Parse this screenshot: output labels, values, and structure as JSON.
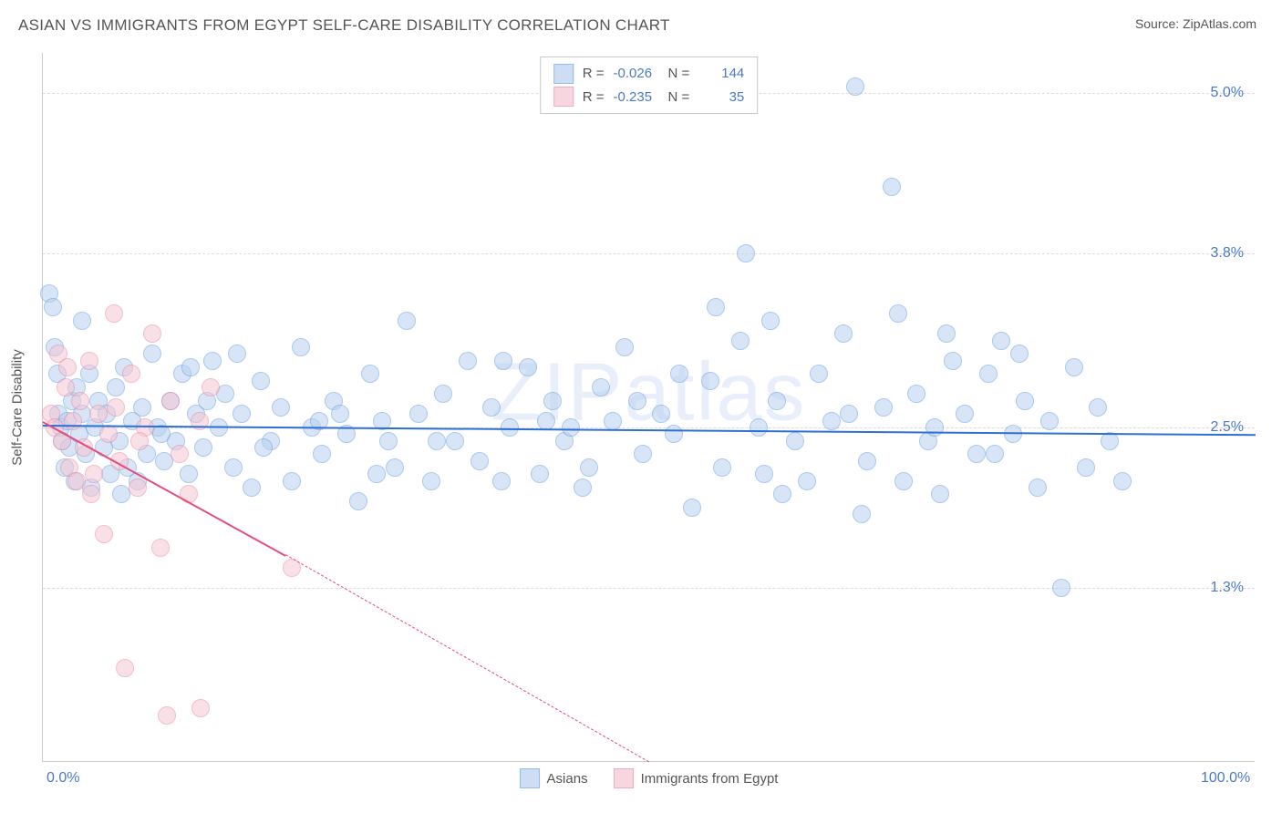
{
  "title": "ASIAN VS IMMIGRANTS FROM EGYPT SELF-CARE DISABILITY CORRELATION CHART",
  "source_label": "Source: ZipAtlas.com",
  "watermark": "ZIPatlas",
  "chart": {
    "type": "scatter",
    "y_axis_title": "Self-Care Disability",
    "x_lim": [
      0,
      100
    ],
    "y_lim": [
      0,
      5.3
    ],
    "x_ticks": [
      {
        "v": 0,
        "label": "0.0%"
      },
      {
        "v": 100,
        "label": "100.0%"
      }
    ],
    "y_ticks": [
      {
        "v": 1.3,
        "label": "1.3%"
      },
      {
        "v": 2.5,
        "label": "2.5%"
      },
      {
        "v": 3.8,
        "label": "3.8%"
      },
      {
        "v": 5.0,
        "label": "5.0%"
      }
    ],
    "grid_color": "#dddddd",
    "background_color": "#ffffff",
    "marker_radius": 10,
    "marker_stroke_width": 1.5,
    "series": [
      {
        "name": "Asians",
        "fill": "#b8d1f0",
        "stroke": "#6a9de0",
        "fill_opacity": 0.55,
        "R": "-0.026",
        "N": "144",
        "trend": {
          "y_at_x0": 2.52,
          "y_at_x100": 2.45,
          "stroke": "#2e6fd6",
          "width": 2.5
        },
        "points": [
          [
            0.5,
            3.5
          ],
          [
            0.8,
            3.4
          ],
          [
            1,
            3.1
          ],
          [
            1.2,
            2.9
          ],
          [
            1.3,
            2.6
          ],
          [
            1.5,
            2.5
          ],
          [
            1.6,
            2.4
          ],
          [
            1.8,
            2.2
          ],
          [
            2,
            2.55
          ],
          [
            2.2,
            2.35
          ],
          [
            2.4,
            2.7
          ],
          [
            2.6,
            2.1
          ],
          [
            2.8,
            2.8
          ],
          [
            3,
            2.45
          ],
          [
            3.2,
            2.6
          ],
          [
            3.5,
            2.3
          ],
          [
            3.8,
            2.9
          ],
          [
            4,
            2.05
          ],
          [
            4.3,
            2.5
          ],
          [
            4.6,
            2.7
          ],
          [
            5,
            2.35
          ],
          [
            5.3,
            2.6
          ],
          [
            5.6,
            2.15
          ],
          [
            6,
            2.8
          ],
          [
            6.3,
            2.4
          ],
          [
            6.7,
            2.95
          ],
          [
            7,
            2.2
          ],
          [
            7.4,
            2.55
          ],
          [
            7.8,
            2.1
          ],
          [
            8.2,
            2.65
          ],
          [
            8.6,
            2.3
          ],
          [
            9,
            3.05
          ],
          [
            9.5,
            2.5
          ],
          [
            10,
            2.25
          ],
          [
            10.5,
            2.7
          ],
          [
            11,
            2.4
          ],
          [
            11.5,
            2.9
          ],
          [
            12,
            2.15
          ],
          [
            12.6,
            2.6
          ],
          [
            13.2,
            2.35
          ],
          [
            14,
            3.0
          ],
          [
            14.5,
            2.5
          ],
          [
            15,
            2.75
          ],
          [
            15.7,
            2.2
          ],
          [
            16.4,
            2.6
          ],
          [
            17.2,
            2.05
          ],
          [
            18,
            2.85
          ],
          [
            18.8,
            2.4
          ],
          [
            19.6,
            2.65
          ],
          [
            20.5,
            2.1
          ],
          [
            21.3,
            3.1
          ],
          [
            22.2,
            2.5
          ],
          [
            23,
            2.3
          ],
          [
            24,
            2.7
          ],
          [
            25,
            2.45
          ],
          [
            26,
            1.95
          ],
          [
            27,
            2.9
          ],
          [
            28,
            2.55
          ],
          [
            29,
            2.2
          ],
          [
            30,
            3.3
          ],
          [
            31,
            2.6
          ],
          [
            32,
            2.1
          ],
          [
            33,
            2.75
          ],
          [
            34,
            2.4
          ],
          [
            35,
            3.0
          ],
          [
            36,
            2.25
          ],
          [
            37,
            2.65
          ],
          [
            38.5,
            2.5
          ],
          [
            40,
            2.95
          ],
          [
            41,
            2.15
          ],
          [
            42,
            2.7
          ],
          [
            43,
            2.4
          ],
          [
            44.5,
            2.05
          ],
          [
            46,
            2.8
          ],
          [
            47,
            2.55
          ],
          [
            48,
            3.1
          ],
          [
            49.5,
            2.3
          ],
          [
            51,
            2.6
          ],
          [
            52,
            2.45
          ],
          [
            53.5,
            1.9
          ],
          [
            55,
            2.85
          ],
          [
            56,
            2.2
          ],
          [
            57.5,
            3.15
          ],
          [
            58,
            3.8
          ],
          [
            59,
            2.5
          ],
          [
            60,
            3.3
          ],
          [
            60.5,
            2.7
          ],
          [
            62,
            2.4
          ],
          [
            63,
            2.1
          ],
          [
            64,
            2.9
          ],
          [
            65,
            2.55
          ],
          [
            66,
            3.2
          ],
          [
            67,
            5.05
          ],
          [
            68,
            2.25
          ],
          [
            69.3,
            2.65
          ],
          [
            70,
            4.3
          ],
          [
            70.5,
            3.35
          ],
          [
            71,
            2.1
          ],
          [
            72,
            2.75
          ],
          [
            73,
            2.4
          ],
          [
            74,
            2.0
          ],
          [
            75,
            3.0
          ],
          [
            76,
            2.6
          ],
          [
            77,
            2.3
          ],
          [
            78,
            2.9
          ],
          [
            79,
            3.15
          ],
          [
            80,
            2.45
          ],
          [
            81,
            2.7
          ],
          [
            82,
            2.05
          ],
          [
            83,
            2.55
          ],
          [
            84,
            1.3
          ],
          [
            85,
            2.95
          ],
          [
            86,
            2.2
          ],
          [
            87,
            2.65
          ],
          [
            88,
            2.4
          ],
          [
            89,
            2.1
          ],
          [
            3.2,
            3.3
          ],
          [
            16,
            3.05
          ],
          [
            24.5,
            2.6
          ],
          [
            6.5,
            2.0
          ],
          [
            9.8,
            2.45
          ],
          [
            13.5,
            2.7
          ],
          [
            18.2,
            2.35
          ],
          [
            22.8,
            2.55
          ],
          [
            27.5,
            2.15
          ],
          [
            32.5,
            2.4
          ],
          [
            37.8,
            2.1
          ],
          [
            43.5,
            2.5
          ],
          [
            49,
            2.7
          ],
          [
            55.5,
            3.4
          ],
          [
            61,
            2.0
          ],
          [
            67.5,
            1.85
          ],
          [
            73.5,
            2.5
          ],
          [
            80.5,
            3.05
          ],
          [
            38,
            3.0
          ],
          [
            45,
            2.2
          ],
          [
            52.5,
            2.9
          ],
          [
            59.5,
            2.15
          ],
          [
            66.5,
            2.6
          ],
          [
            74.5,
            3.2
          ],
          [
            12.2,
            2.95
          ],
          [
            28.5,
            2.4
          ],
          [
            41.5,
            2.55
          ],
          [
            78.5,
            2.3
          ]
        ]
      },
      {
        "name": "Immigrants from Egypt",
        "fill": "#f5c5d2",
        "stroke": "#e88aa5",
        "fill_opacity": 0.55,
        "R": "-0.235",
        "N": "35",
        "trend": {
          "y_at_x0": 2.55,
          "y_at_x20": 1.55,
          "stroke": "#e54d7a",
          "width": 2,
          "dash_after_x": 20,
          "y_at_x_dash_end": 0,
          "x_dash_end": 50
        },
        "points": [
          [
            0.7,
            2.6
          ],
          [
            1.0,
            2.5
          ],
          [
            1.3,
            3.05
          ],
          [
            1.6,
            2.4
          ],
          [
            1.9,
            2.8
          ],
          [
            2.2,
            2.2
          ],
          [
            2.5,
            2.55
          ],
          [
            2.8,
            2.1
          ],
          [
            3.1,
            2.7
          ],
          [
            3.4,
            2.35
          ],
          [
            3.8,
            3.0
          ],
          [
            4.2,
            2.15
          ],
          [
            4.6,
            2.6
          ],
          [
            5.0,
            1.7
          ],
          [
            5.4,
            2.45
          ],
          [
            5.9,
            3.35
          ],
          [
            6.3,
            2.25
          ],
          [
            6.8,
            0.7
          ],
          [
            7.3,
            2.9
          ],
          [
            7.8,
            2.05
          ],
          [
            8.4,
            2.5
          ],
          [
            9.0,
            3.2
          ],
          [
            9.7,
            1.6
          ],
          [
            10.2,
            0.35
          ],
          [
            10.5,
            2.7
          ],
          [
            11.3,
            2.3
          ],
          [
            12.0,
            2.0
          ],
          [
            12.9,
            2.55
          ],
          [
            13.8,
            2.8
          ],
          [
            13.0,
            0.4
          ],
          [
            2.0,
            2.95
          ],
          [
            4.0,
            2.0
          ],
          [
            6.0,
            2.65
          ],
          [
            8.0,
            2.4
          ],
          [
            20.5,
            1.45
          ]
        ]
      }
    ],
    "legend_top": {
      "rows": [
        {
          "swatch_fill": "#b8d1f0",
          "swatch_stroke": "#6a9de0",
          "r_label": "R =",
          "r_val": "-0.026",
          "n_label": "N =",
          "n_val": "144"
        },
        {
          "swatch_fill": "#f5c5d2",
          "swatch_stroke": "#e88aa5",
          "r_label": "R =",
          "r_val": "-0.235",
          "n_label": "N =",
          "n_val": "35"
        }
      ]
    },
    "legend_bottom": [
      {
        "swatch_fill": "#b8d1f0",
        "swatch_stroke": "#6a9de0",
        "label": "Asians"
      },
      {
        "swatch_fill": "#f5c5d2",
        "swatch_stroke": "#e88aa5",
        "label": "Immigrants from Egypt"
      }
    ]
  }
}
